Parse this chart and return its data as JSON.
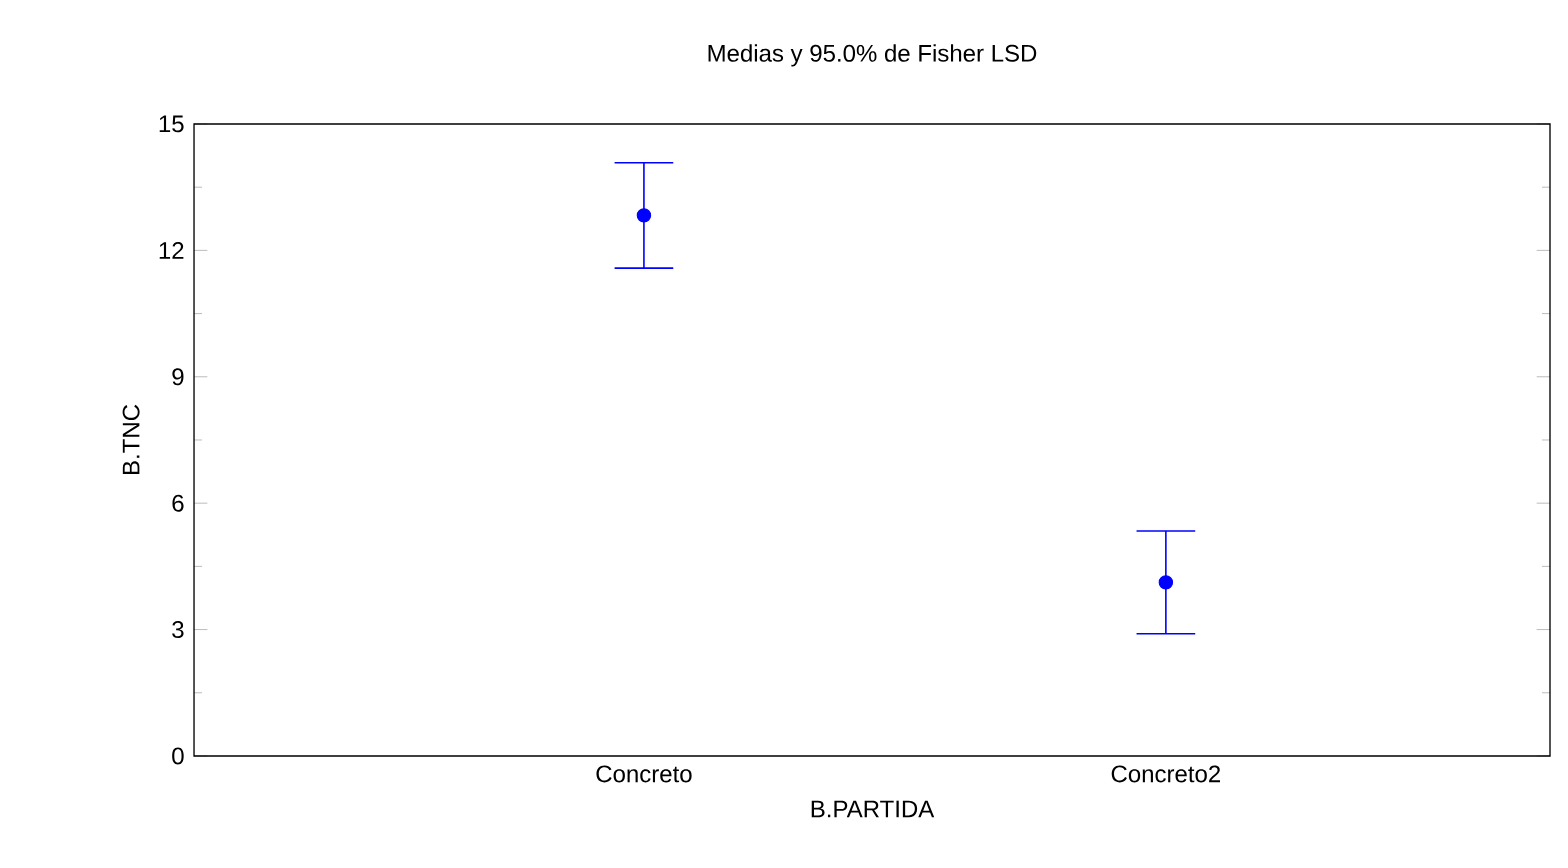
{
  "chart_data": {
    "type": "scatter",
    "title": "Medias y 95.0% de Fisher LSD",
    "xlabel": "B.PARTIDA",
    "ylabel": "B.TNC",
    "categories": [
      "Concreto",
      "Concreto2"
    ],
    "series": [
      {
        "color": "#0000ff",
        "values": [
          12.83,
          4.12
        ],
        "errors": [
          1.25,
          1.22
        ]
      }
    ],
    "ylim": [
      0,
      15
    ],
    "yticks": [
      0,
      3,
      6,
      9,
      12,
      15
    ],
    "marker": "circle"
  }
}
